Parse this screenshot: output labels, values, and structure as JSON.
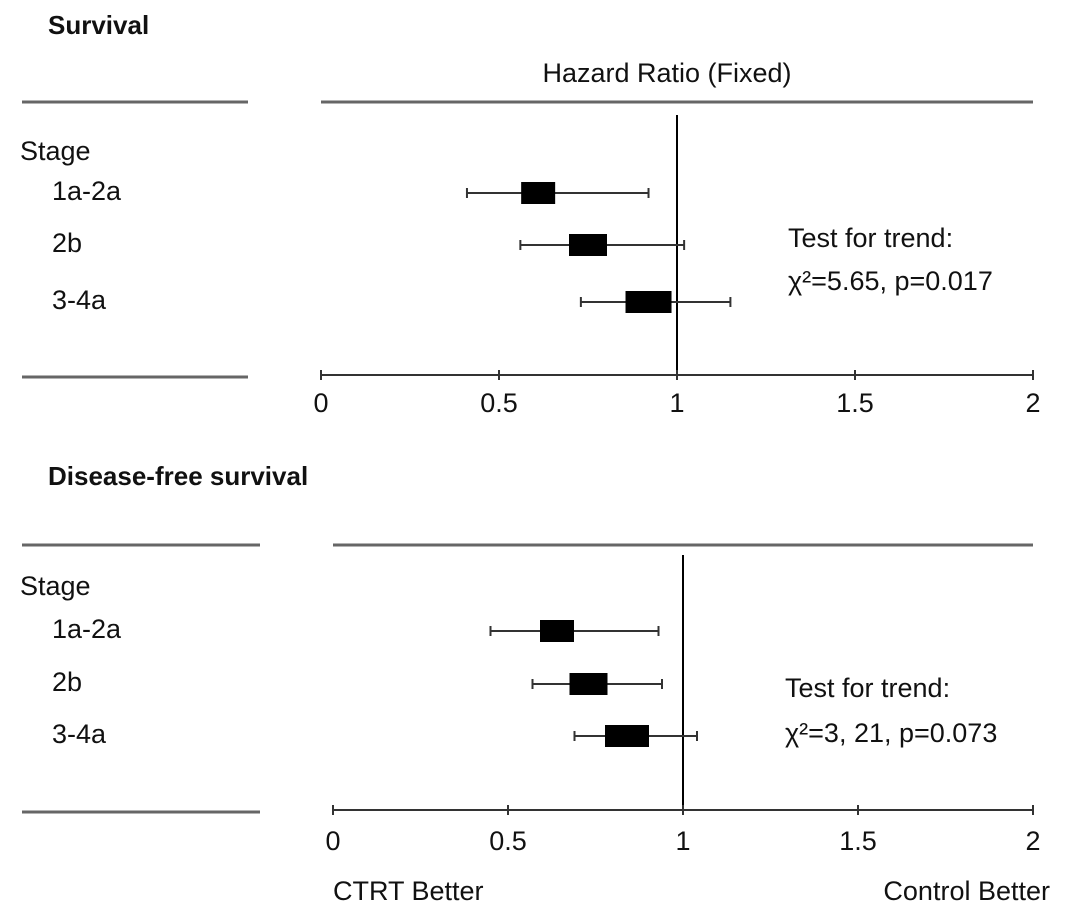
{
  "chart_data": [
    {
      "type": "forest",
      "title": "Survival",
      "header": "Hazard Ratio (Fixed)",
      "group_label": "Stage",
      "categories": [
        "1a-2a",
        "2b",
        "3-4a"
      ],
      "values": [
        0.61,
        0.75,
        0.92
      ],
      "ci_lower": [
        0.41,
        0.56,
        0.73
      ],
      "ci_upper": [
        0.92,
        1.02,
        1.15
      ],
      "reference": 1,
      "xlim": [
        0,
        2
      ],
      "xticks": [
        0,
        0.5,
        1,
        1.5,
        2
      ],
      "annotations": [
        "Test for trend:",
        "χ²=5.65, p=0.017"
      ],
      "color": "#000000"
    },
    {
      "type": "forest",
      "title": "Disease-free survival",
      "group_label": "Stage",
      "categories": [
        "1a-2a",
        "2b",
        "3-4a"
      ],
      "values": [
        0.64,
        0.73,
        0.84
      ],
      "ci_lower": [
        0.45,
        0.57,
        0.69
      ],
      "ci_upper": [
        0.93,
        0.94,
        1.04
      ],
      "reference": 1,
      "xlim": [
        0,
        2
      ],
      "xticks": [
        0,
        0.5,
        1,
        1.5,
        2
      ],
      "annotations": [
        "Test for trend:",
        "χ²=3, 21, p=0.073"
      ],
      "x_labels": [
        "CTRT Better",
        "Control Better"
      ],
      "color": "#000000"
    }
  ]
}
